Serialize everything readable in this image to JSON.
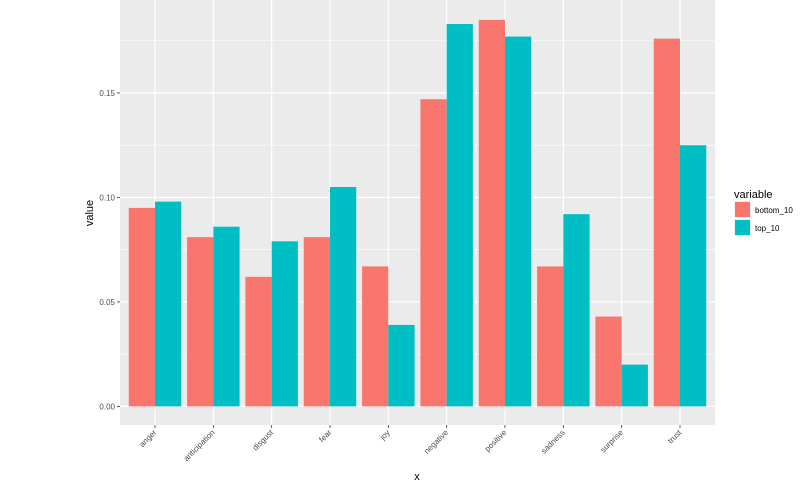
{
  "chart_data": {
    "type": "bar",
    "xlabel": "x",
    "ylabel": "value",
    "categories": [
      "anger",
      "anticipation",
      "disgust",
      "fear",
      "joy",
      "negative",
      "positive",
      "sadness",
      "surprise",
      "trust"
    ],
    "series": [
      {
        "name": "bottom_10",
        "color": "#F8766D",
        "values": [
          0.095,
          0.081,
          0.062,
          0.081,
          0.067,
          0.147,
          0.185,
          0.067,
          0.043,
          0.176
        ]
      },
      {
        "name": "top_10",
        "color": "#00BFC4",
        "values": [
          0.098,
          0.086,
          0.079,
          0.105,
          0.039,
          0.183,
          0.177,
          0.092,
          0.02,
          0.125
        ]
      }
    ],
    "ylim": [
      -0.0089,
      0.1945
    ],
    "yticks": [
      0.0,
      0.05,
      0.1,
      0.15
    ],
    "ytick_labels": [
      "0.00",
      "0.05",
      "0.10",
      "0.15"
    ],
    "legend": {
      "title": "variable",
      "position": "right"
    },
    "grid": true,
    "panel_background": "#EBEBEB",
    "grid_color": "#FFFFFF"
  }
}
